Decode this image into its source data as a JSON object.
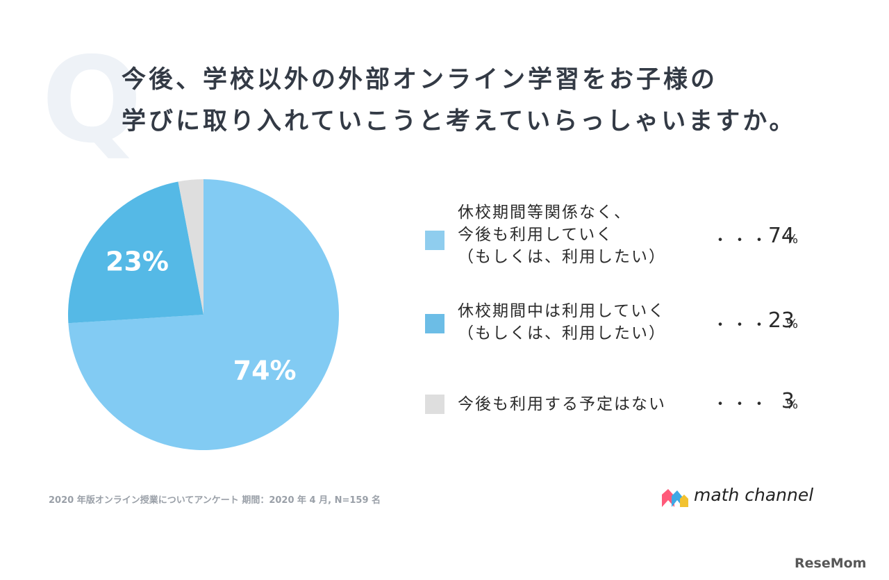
{
  "title": {
    "line1": "今後、学校以外の外部オンライン学習をお子様の",
    "line2": "学びに取り入れていこうと考えていらっしゃいますか。"
  },
  "q_mark": "Q",
  "chart_data": {
    "type": "pie",
    "title": "今後、学校以外の外部オンライン学習をお子様の学びに取り入れていこうと考えていらっしゃいますか。",
    "slices": [
      {
        "label": "休校期間等関係なく、今後も利用していく（もしくは、利用したい）",
        "value": 74,
        "color": "#82cbf3",
        "data_label": "74%"
      },
      {
        "label": "休校期間中は利用していく（もしくは、利用したい）",
        "value": 23,
        "color": "#55b9e6",
        "data_label": "23%"
      },
      {
        "label": "今後も利用する予定はない",
        "value": 3,
        "color": "#dedede",
        "data_label": ""
      }
    ],
    "start": "12 o'clock",
    "direction": "clockwise"
  },
  "legend": [
    {
      "lines": [
        "休校期間等関係なく、",
        "今後も利用していく",
        "（もしくは、利用したい）"
      ],
      "dots": "・・・",
      "value": "74",
      "unit": "%",
      "color": "#8fcdee"
    },
    {
      "lines": [
        "休校期間中は利用していく",
        "（もしくは、利用したい）"
      ],
      "dots": "・・・",
      "value": "23",
      "unit": "%",
      "color": "#6cbde6"
    },
    {
      "lines": [
        "今後も利用する予定はない"
      ],
      "dots": "・・・",
      "value": "3",
      "unit": "%",
      "color": "#dedede"
    }
  ],
  "footnote": "2020 年版オンライン授業についてアンケート 期間：2020 年 4 月, N=159 名",
  "brand": {
    "name": "math channel",
    "logo_colors": [
      "#ff5a7a",
      "#3ea8e6",
      "#f2c230"
    ]
  },
  "watermark": "ReseMom"
}
